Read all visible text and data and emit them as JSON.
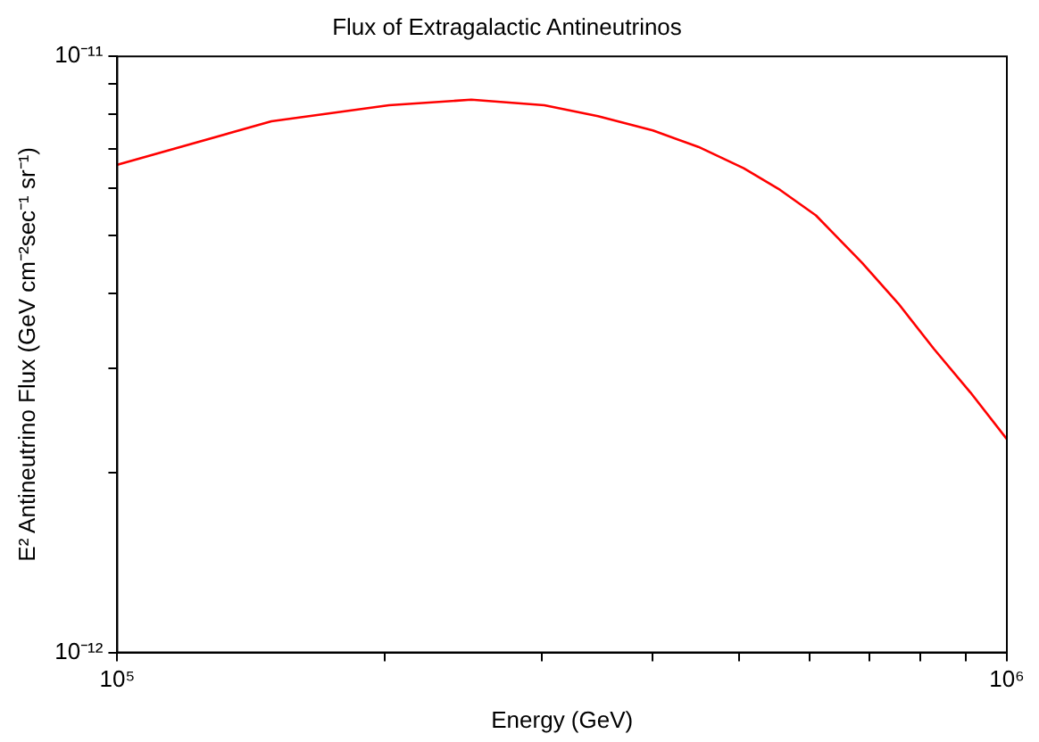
{
  "chart_data": {
    "type": "line",
    "title": "Flux of Extragalactic Antineutrinos",
    "xlabel": "Energy (GeV)",
    "ylabel": "E² Antineutrino Flux (GeV cm⁻²sec⁻¹ sr⁻¹)",
    "log": "xy",
    "grid": false,
    "legend": false,
    "marker": "none",
    "line_style": "solid",
    "x": [
      100000,
      149000,
      202000,
      250000,
      302000,
      347000,
      400000,
      450000,
      506000,
      556000,
      610000,
      687000,
      755000,
      828000,
      910000,
      1000000
    ],
    "series": [
      {
        "color": "#ff0000",
        "values": [
          6.58e-12,
          7.78e-12,
          8.28e-12,
          8.46e-12,
          8.28e-12,
          7.94e-12,
          7.51e-12,
          7.05e-12,
          6.49e-12,
          5.97e-12,
          5.41e-12,
          4.51e-12,
          3.85e-12,
          3.23e-12,
          2.73e-12,
          2.28e-12
        ]
      }
    ],
    "xlim": [
      100000,
      1000000
    ],
    "ylim": [
      1e-12,
      1e-11
    ],
    "xticks": [
      {
        "value": 100000,
        "label": "10⁵"
      },
      {
        "value": 200000,
        "label": null
      },
      {
        "value": 300000,
        "label": null
      },
      {
        "value": 400000,
        "label": null
      },
      {
        "value": 500000,
        "label": null
      },
      {
        "value": 600000,
        "label": null
      },
      {
        "value": 700000,
        "label": null
      },
      {
        "value": 800000,
        "label": null
      },
      {
        "value": 900000,
        "label": null
      },
      {
        "value": 1000000,
        "label": "10⁶"
      }
    ],
    "yticks": [
      {
        "value": 1e-12,
        "label": "10⁻¹²"
      },
      {
        "value": 2e-12,
        "label": null
      },
      {
        "value": 3e-12,
        "label": null
      },
      {
        "value": 4e-12,
        "label": null
      },
      {
        "value": 5e-12,
        "label": null
      },
      {
        "value": 6e-12,
        "label": null
      },
      {
        "value": 7e-12,
        "label": null
      },
      {
        "value": 8e-12,
        "label": null
      },
      {
        "value": 9e-12,
        "label": null
      },
      {
        "value": 1e-11,
        "label": "10⁻¹¹"
      }
    ]
  }
}
